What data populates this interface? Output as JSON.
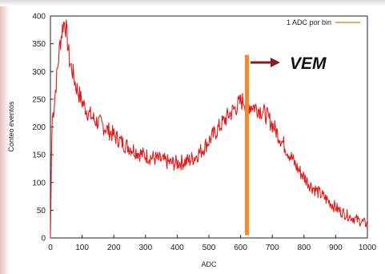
{
  "colors": {
    "series": "#e01b1b",
    "marker": "#f08a2a",
    "arrow": "#8b1a1a",
    "axis": "#222222"
  },
  "chart_data": {
    "type": "line",
    "title": "",
    "xlabel": "ADC",
    "ylabel": "Conteo eventos",
    "xlim": [
      0,
      1000
    ],
    "ylim": [
      0,
      400
    ],
    "xticks": [
      0,
      100,
      200,
      300,
      400,
      500,
      600,
      700,
      800,
      900,
      1000
    ],
    "yticks": [
      0,
      50,
      100,
      150,
      200,
      250,
      300,
      350,
      400
    ],
    "grid": false,
    "legend_position": "top-right",
    "series": [
      {
        "name": "1 ADC por bin",
        "x": [
          0,
          5,
          10,
          20,
          30,
          40,
          45,
          50,
          60,
          70,
          80,
          90,
          100,
          120,
          140,
          160,
          180,
          200,
          230,
          260,
          290,
          320,
          350,
          380,
          400,
          420,
          440,
          460,
          480,
          500,
          520,
          540,
          560,
          580,
          600,
          610,
          620,
          640,
          660,
          680,
          700,
          720,
          740,
          760,
          780,
          800,
          820,
          850,
          880,
          910,
          940,
          970,
          1000
        ],
        "y": [
          0,
          215,
          230,
          290,
          350,
          385,
          390,
          375,
          320,
          300,
          275,
          260,
          245,
          225,
          212,
          205,
          195,
          185,
          170,
          160,
          150,
          145,
          140,
          135,
          135,
          137,
          140,
          148,
          160,
          175,
          190,
          205,
          220,
          232,
          245,
          248,
          240,
          238,
          232,
          222,
          205,
          185,
          165,
          145,
          125,
          110,
          95,
          80,
          65,
          50,
          40,
          32,
          25
        ]
      }
    ],
    "annotations": {
      "vertical_line_x": 620,
      "vertical_line_y": [
        5,
        330
      ],
      "label": "VEM"
    }
  }
}
